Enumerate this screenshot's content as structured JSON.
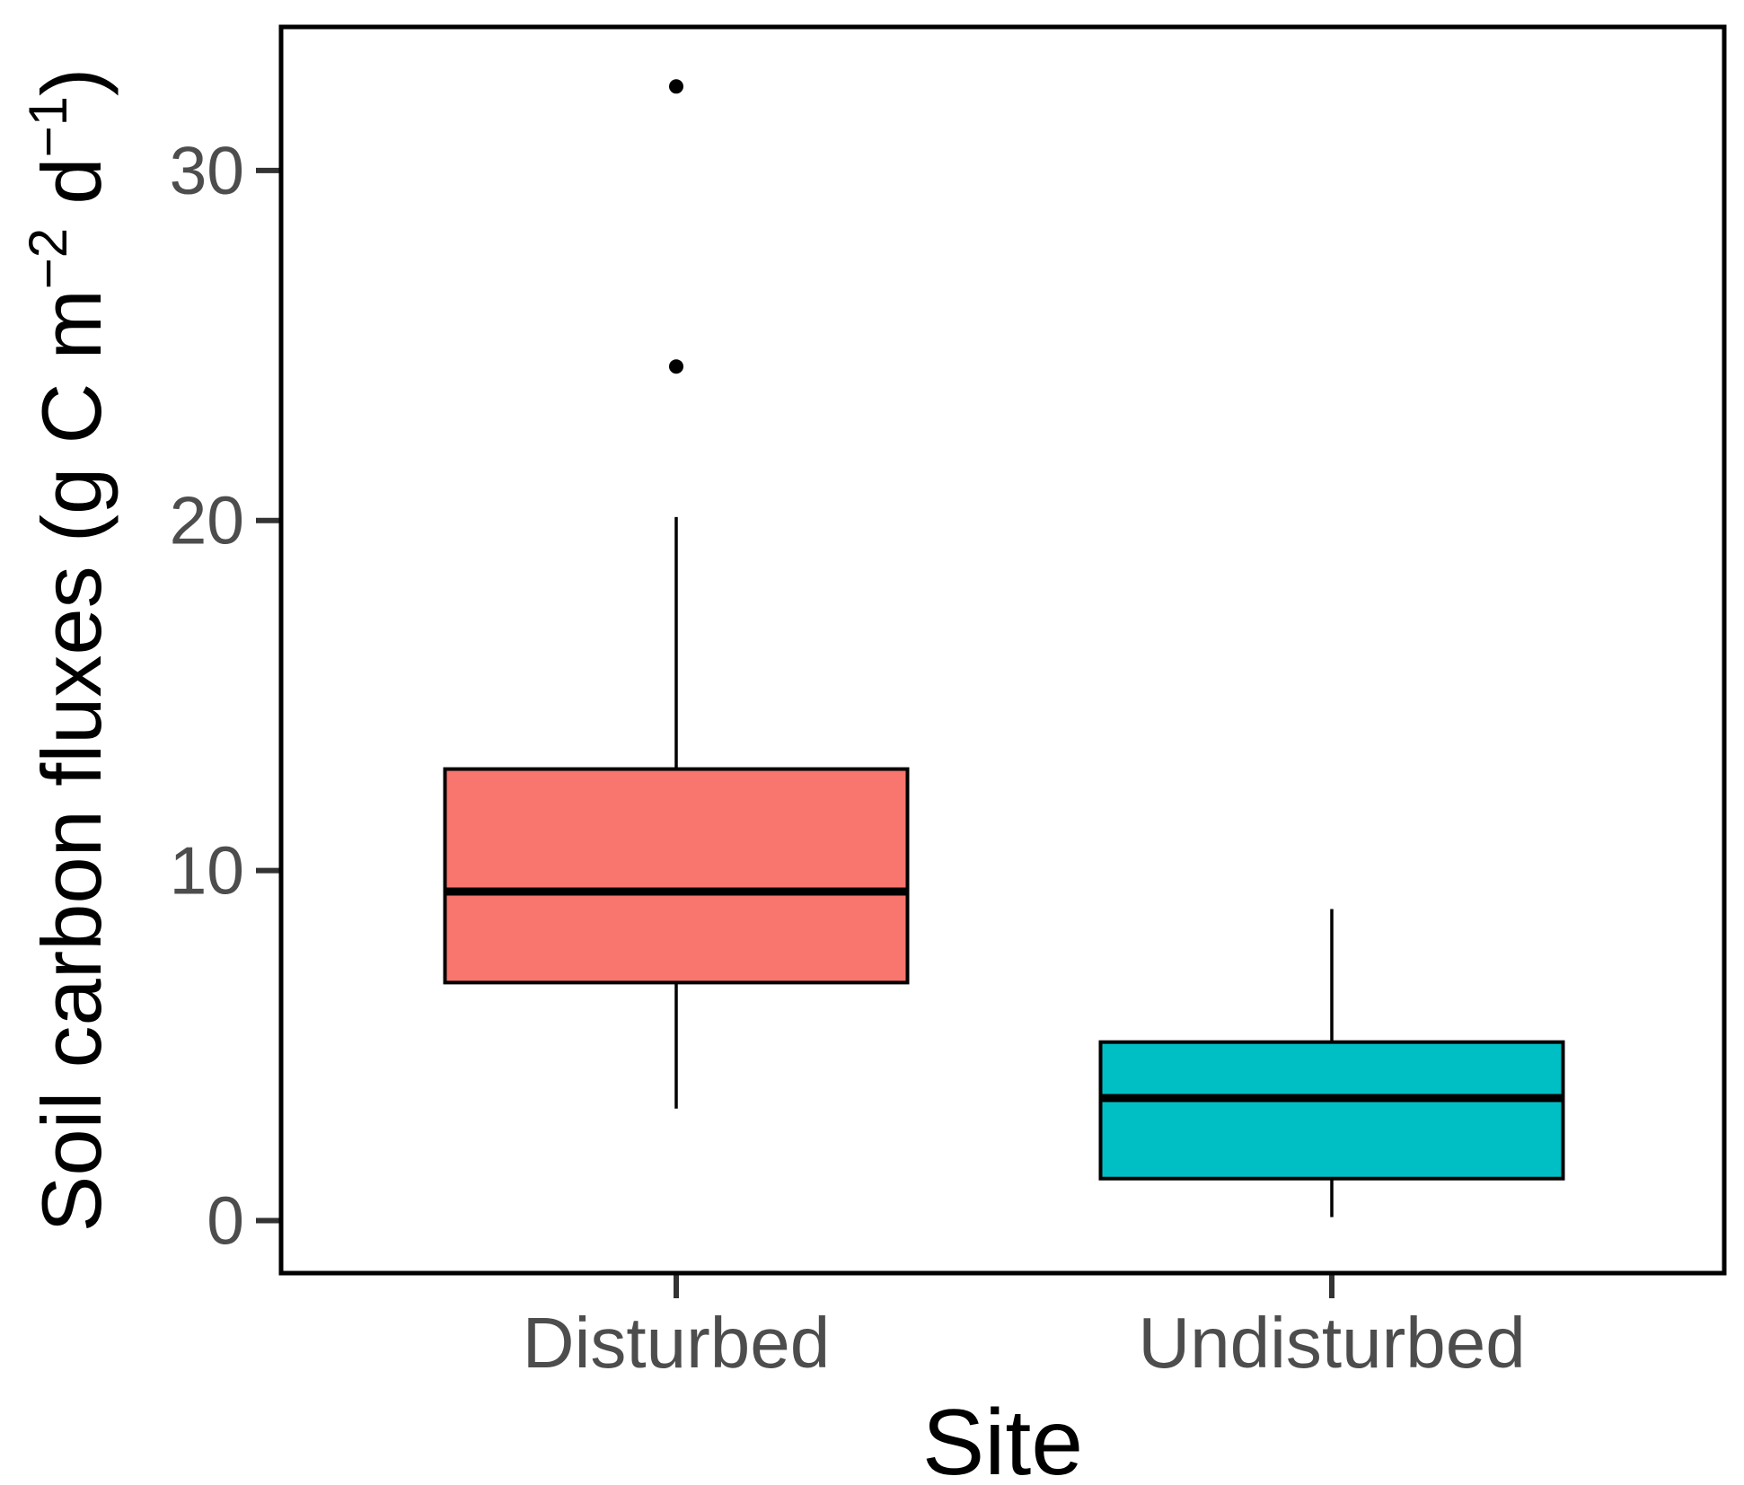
{
  "figure": {
    "background": "#FFFFFF",
    "panel_border_color": "#000000",
    "axis_tick_color": "#333333",
    "axis_text_color": "#4D4D4D",
    "axis_title_color": "#000000",
    "box_border_color": "#000000",
    "outlier_color": "#000000"
  },
  "chart_data": {
    "type": "boxplot",
    "title": "",
    "xlabel": "Site",
    "ylabel": "Soil carbon fluxes (g C m⁻² d⁻¹)",
    "ylabel_parts": [
      {
        "t": "Soil carbon fluxes (g C m",
        "sup": false
      },
      {
        "t": "−2",
        "sup": true
      },
      {
        "t": " d",
        "sup": false
      },
      {
        "t": "−1",
        "sup": true
      },
      {
        "t": ")",
        "sup": false
      }
    ],
    "categories": [
      "Disturbed",
      "Undisturbed"
    ],
    "yticks": [
      0,
      10,
      20,
      30
    ],
    "ylim": [
      -1.5,
      34.1
    ],
    "grid": false,
    "legend": "none",
    "series": [
      {
        "category": "Disturbed",
        "fill": "#F8766D",
        "whisker_low": 3.2,
        "q1": 6.8,
        "median": 9.4,
        "q3": 12.9,
        "whisker_high": 20.1,
        "outliers": [
          24.4,
          32.4
        ]
      },
      {
        "category": "Undisturbed",
        "fill": "#00BFC4",
        "whisker_low": 0.1,
        "q1": 1.2,
        "median": 3.5,
        "q3": 5.1,
        "whisker_high": 8.9,
        "outliers": []
      }
    ]
  }
}
